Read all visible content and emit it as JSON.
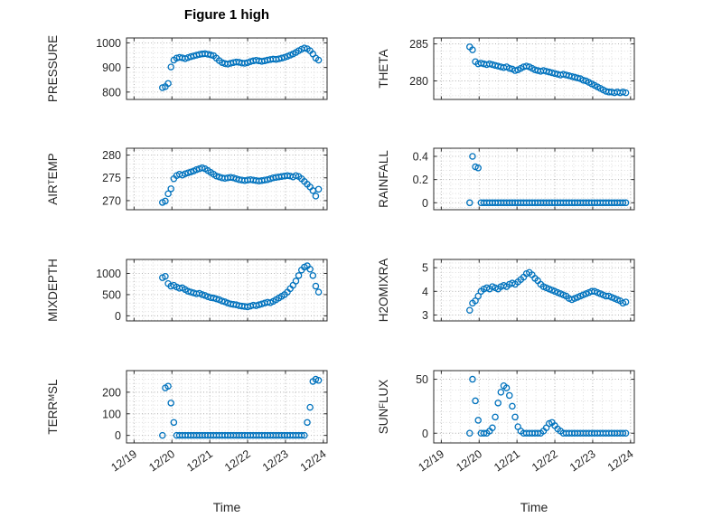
{
  "figure": {
    "title": "Figure 1 high",
    "background": "#ffffff",
    "marker_color": "#0072BD",
    "axis_color": "#2b2b2b",
    "grid_color": "#a9a9a9",
    "minor_grid_color": "#d5d5d5",
    "tick_text_color": "#262626"
  },
  "x_axis": {
    "label": "Time",
    "lim": [
      18.8,
      24.1
    ],
    "ticks": [
      19,
      20,
      21,
      22,
      23,
      24
    ],
    "tick_labels": [
      "12/19",
      "12/20",
      "12/21",
      "12/22",
      "12/23",
      "12/24"
    ],
    "minor_step": 0.25
  },
  "x_common": [
    19.75,
    19.825,
    19.9,
    19.975,
    20.05,
    20.125,
    20.2,
    20.275,
    20.35,
    20.425,
    20.5,
    20.575,
    20.65,
    20.725,
    20.8,
    20.875,
    20.95,
    21.025,
    21.1,
    21.175,
    21.25,
    21.325,
    21.4,
    21.475,
    21.55,
    21.625,
    21.7,
    21.775,
    21.85,
    21.925,
    22,
    22.075,
    22.15,
    22.225,
    22.3,
    22.375,
    22.45,
    22.525,
    22.6,
    22.675,
    22.75,
    22.825,
    22.9,
    22.975,
    23.05,
    23.125,
    23.2,
    23.275,
    23.35,
    23.425,
    23.5,
    23.575,
    23.65,
    23.725,
    23.8,
    23.875
  ],
  "chart_data": [
    {
      "type": "scatter",
      "name": "PRESSURE",
      "ylabel_parts": [
        {
          "text": "PRESSURE",
          "sub": false
        }
      ],
      "ylim": [
        770,
        1020
      ],
      "yticks": [
        800,
        900,
        1000
      ],
      "y": [
        818,
        822,
        835,
        902,
        930,
        938,
        941,
        939,
        936,
        940,
        944,
        947,
        950,
        953,
        955,
        956,
        954,
        951,
        948,
        938,
        928,
        920,
        916,
        914,
        917,
        920,
        922,
        921,
        918,
        917,
        920,
        924,
        927,
        929,
        927,
        925,
        927,
        930,
        932,
        934,
        933,
        935,
        938,
        941,
        945,
        950,
        955,
        961,
        968,
        974,
        979,
        976,
        968,
        955,
        938,
        930
      ]
    },
    {
      "type": "scatter",
      "name": "AIR_TEMP",
      "ylabel_parts": [
        {
          "text": "AIR",
          "sub": false
        },
        {
          "text": "T",
          "sub": true
        },
        {
          "text": "EMP",
          "sub": false
        }
      ],
      "ylim": [
        268,
        281.5
      ],
      "yticks": [
        270,
        275,
        280
      ],
      "y": [
        269.6,
        269.9,
        271.5,
        272.6,
        274.8,
        275.5,
        275.8,
        275.6,
        275.9,
        276.1,
        276.3,
        276.5,
        276.8,
        277.0,
        277.2,
        277.0,
        276.6,
        276.2,
        275.8,
        275.4,
        275.2,
        275.0,
        274.9,
        275.0,
        275.1,
        275.0,
        274.8,
        274.6,
        274.5,
        274.4,
        274.5,
        274.6,
        274.5,
        274.4,
        274.3,
        274.4,
        274.5,
        274.6,
        274.8,
        275.0,
        275.1,
        275.2,
        275.3,
        275.4,
        275.5,
        275.4,
        275.2,
        275.5,
        275.3,
        274.8,
        274.2,
        273.6,
        273.0,
        272.2,
        271.0,
        272.5
      ]
    },
    {
      "type": "scatter",
      "name": "MIXDEPTH",
      "ylabel_parts": [
        {
          "text": "MIXDEPTH",
          "sub": false
        }
      ],
      "ylim": [
        -120,
        1330
      ],
      "yticks": [
        0,
        500,
        1000
      ],
      "y": [
        900,
        930,
        760,
        700,
        720,
        680,
        650,
        660,
        620,
        580,
        560,
        540,
        520,
        530,
        500,
        480,
        450,
        430,
        420,
        400,
        380,
        350,
        330,
        300,
        280,
        270,
        260,
        240,
        230,
        220,
        210,
        230,
        250,
        240,
        260,
        280,
        300,
        320,
        310,
        340,
        380,
        420,
        460,
        500,
        560,
        640,
        720,
        820,
        950,
        1080,
        1150,
        1180,
        1100,
        950,
        700,
        560
      ]
    },
    {
      "type": "scatter",
      "name": "TERR_MSL",
      "ylabel_parts": [
        {
          "text": "TERR",
          "sub": false
        },
        {
          "text": "M",
          "sub": true
        },
        {
          "text": "SL",
          "sub": false
        }
      ],
      "ylim": [
        -35,
        300
      ],
      "yticks": [
        0,
        100,
        200
      ],
      "y": [
        0,
        220,
        228,
        150,
        60,
        0,
        0,
        0,
        0,
        0,
        0,
        0,
        0,
        0,
        0,
        0,
        0,
        0,
        0,
        0,
        0,
        0,
        0,
        0,
        0,
        0,
        0,
        0,
        0,
        0,
        0,
        0,
        0,
        0,
        0,
        0,
        0,
        0,
        0,
        0,
        0,
        0,
        0,
        0,
        0,
        0,
        0,
        0,
        0,
        0,
        0,
        60,
        130,
        250,
        260,
        255
      ]
    },
    {
      "type": "scatter",
      "name": "THETA",
      "ylabel_parts": [
        {
          "text": "THETA",
          "sub": false
        }
      ],
      "ylim": [
        277.5,
        285.8
      ],
      "yticks": [
        280,
        285
      ],
      "y": [
        284.6,
        284.2,
        282.6,
        282.3,
        282.4,
        282.3,
        282.2,
        282.3,
        282.2,
        282.1,
        282.0,
        281.9,
        281.8,
        281.9,
        281.7,
        281.6,
        281.4,
        281.5,
        281.7,
        281.9,
        282.0,
        281.9,
        281.7,
        281.5,
        281.4,
        281.3,
        281.4,
        281.3,
        281.2,
        281.1,
        281.0,
        280.9,
        280.8,
        280.9,
        280.8,
        280.7,
        280.6,
        280.5,
        280.4,
        280.3,
        280.1,
        280.0,
        279.8,
        279.6,
        279.4,
        279.2,
        279.0,
        278.8,
        278.6,
        278.5,
        278.5,
        278.4,
        278.5,
        278.4,
        278.5,
        278.4
      ]
    },
    {
      "type": "scatter",
      "name": "RAINFALL",
      "ylabel_parts": [
        {
          "text": "RAINFALL",
          "sub": false
        }
      ],
      "ylim": [
        -0.06,
        0.47
      ],
      "yticks": [
        0,
        0.2,
        0.4
      ],
      "y": [
        0,
        0.4,
        0.31,
        0.3,
        0,
        0,
        0,
        0,
        0,
        0,
        0,
        0,
        0,
        0,
        0,
        0,
        0,
        0,
        0,
        0,
        0,
        0,
        0,
        0,
        0,
        0,
        0,
        0,
        0,
        0,
        0,
        0,
        0,
        0,
        0,
        0,
        0,
        0,
        0,
        0,
        0,
        0,
        0,
        0,
        0,
        0,
        0,
        0,
        0,
        0,
        0,
        0,
        0,
        0,
        0,
        0
      ]
    },
    {
      "type": "scatter",
      "name": "H2OMIXRA",
      "ylabel_parts": [
        {
          "text": "H2OMIXRA",
          "sub": false
        }
      ],
      "ylim": [
        2.75,
        5.35
      ],
      "yticks": [
        3,
        4,
        5
      ],
      "y": [
        3.2,
        3.5,
        3.6,
        3.8,
        4.0,
        4.1,
        4.15,
        4.1,
        4.2,
        4.15,
        4.1,
        4.2,
        4.25,
        4.2,
        4.3,
        4.35,
        4.3,
        4.4,
        4.5,
        4.6,
        4.75,
        4.8,
        4.7,
        4.55,
        4.45,
        4.3,
        4.2,
        4.15,
        4.1,
        4.05,
        4.0,
        3.95,
        3.9,
        3.85,
        3.8,
        3.7,
        3.65,
        3.7,
        3.75,
        3.8,
        3.85,
        3.9,
        3.95,
        4.0,
        4.0,
        3.95,
        3.9,
        3.85,
        3.8,
        3.8,
        3.75,
        3.7,
        3.65,
        3.6,
        3.5,
        3.55
      ]
    },
    {
      "type": "scatter",
      "name": "SUN_FLUX",
      "ylabel_parts": [
        {
          "text": "SUN",
          "sub": false
        },
        {
          "text": "F",
          "sub": true
        },
        {
          "text": "LUX",
          "sub": false
        }
      ],
      "ylim": [
        -9,
        58
      ],
      "yticks": [
        0,
        50
      ],
      "y": [
        0,
        50,
        30,
        12,
        0,
        0,
        0,
        2,
        5,
        15,
        28,
        38,
        44,
        42,
        35,
        25,
        15,
        6,
        2,
        0,
        0,
        0,
        0,
        0,
        0,
        0,
        2,
        5,
        9,
        10,
        7,
        4,
        2,
        0,
        0,
        0,
        0,
        0,
        0,
        0,
        0,
        0,
        0,
        0,
        0,
        0,
        0,
        0,
        0,
        0,
        0,
        0,
        0,
        0,
        0,
        0
      ]
    }
  ]
}
